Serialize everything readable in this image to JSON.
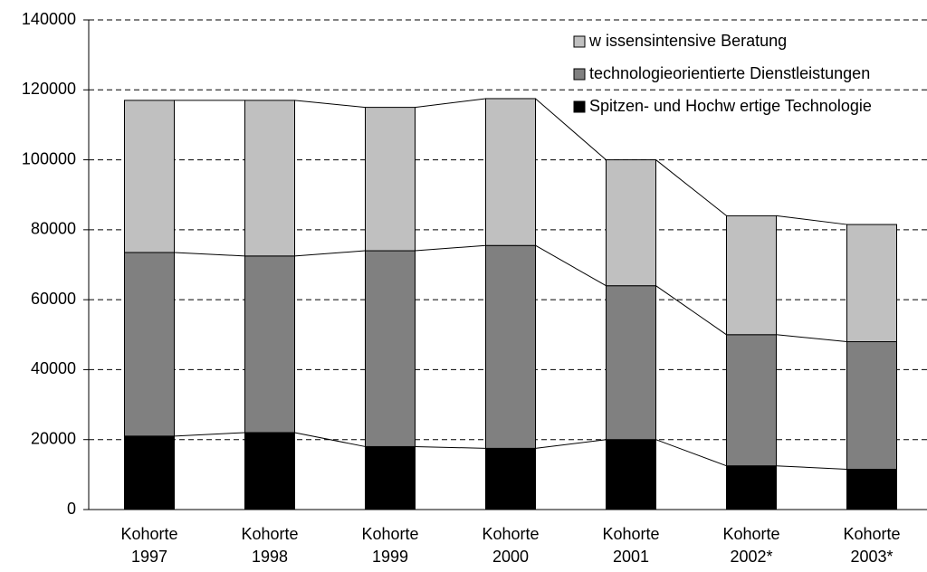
{
  "chart_data": {
    "type": "stacked-bar",
    "categories": [
      "Kohorte 1997",
      "Kohorte 1998",
      "Kohorte 1999",
      "Kohorte 2000",
      "Kohorte 2001",
      "Kohorte 2002*",
      "Kohorte 2003*"
    ],
    "series": [
      {
        "name": "Spitzen- und Hochw ertige Technologie",
        "color": "#000000",
        "values": [
          21000,
          22000,
          18000,
          17500,
          20000,
          12500,
          11500
        ]
      },
      {
        "name": "technologieorientierte Dienstleistungen",
        "color": "#808080",
        "values": [
          52500,
          50500,
          56000,
          58000,
          44000,
          37500,
          36500
        ]
      },
      {
        "name": "w issensintensive Beratung",
        "color": "#c0c0c0",
        "values": [
          43500,
          44500,
          41000,
          42000,
          36000,
          34000,
          33500
        ]
      }
    ],
    "ylim": [
      0,
      140000
    ],
    "yticks": [
      0,
      20000,
      40000,
      60000,
      80000,
      100000,
      120000,
      140000
    ],
    "grid": true
  }
}
